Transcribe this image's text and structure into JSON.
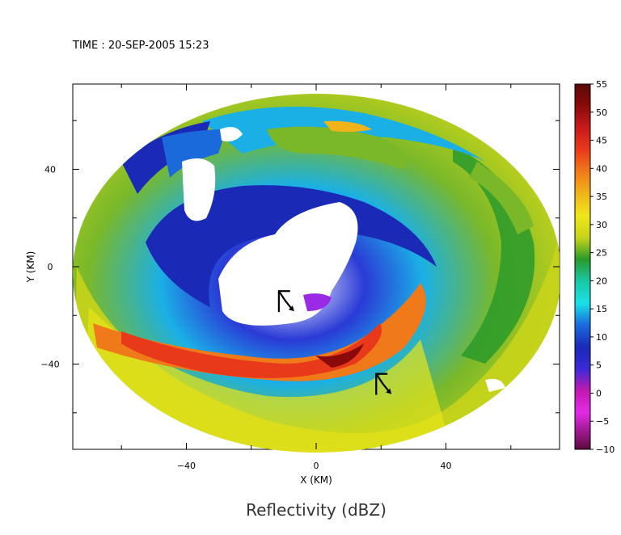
{
  "header": {
    "time_label": "TIME : 20-SEP-2005 15:23"
  },
  "plot": {
    "title": "Reflectivity (dBZ)",
    "x_axis": {
      "label": "X (KM)",
      "ticks": [
        {
          "value": -40,
          "label": "−40"
        },
        {
          "value": 0,
          "label": "0"
        },
        {
          "value": 40,
          "label": "40"
        }
      ],
      "minor_ticks": [
        -60,
        -20,
        20,
        60
      ],
      "range": [
        -75,
        75
      ]
    },
    "y_axis": {
      "label": "Y (KM)",
      "ticks": [
        {
          "value": 40,
          "label": "40"
        },
        {
          "value": 0,
          "label": "0"
        },
        {
          "value": -40,
          "label": "−40"
        }
      ],
      "minor_ticks": [
        60,
        20,
        -20,
        -60
      ],
      "range": [
        -75,
        75
      ]
    }
  },
  "colorbar": {
    "ticks": [
      "55",
      "50",
      "45",
      "40",
      "35",
      "30",
      "25",
      "20",
      "15",
      "10",
      "5",
      "0",
      "−5",
      "−10"
    ],
    "range": [
      -10,
      55
    ],
    "colors": [
      "#5a0a3c",
      "#8a1a6e",
      "#c21ab0",
      "#e22ae6",
      "#9a2ae6",
      "#3a2ad6",
      "#1a2ab6",
      "#1a6adc",
      "#1ab0e6",
      "#1ae0e6",
      "#1ac8a6",
      "#1aa860",
      "#2a9a2a",
      "#7ab82a",
      "#c8d41a",
      "#f0e61a",
      "#f0b41a",
      "#f07a1a",
      "#e83a1a",
      "#c81a1a",
      "#8a0a0a",
      "#6a0a0a"
    ]
  },
  "markers": [
    {
      "name": "storm-center-marker",
      "x": -10,
      "y": -14
    },
    {
      "name": "secondary-marker",
      "x": 20,
      "y": -48
    }
  ]
}
